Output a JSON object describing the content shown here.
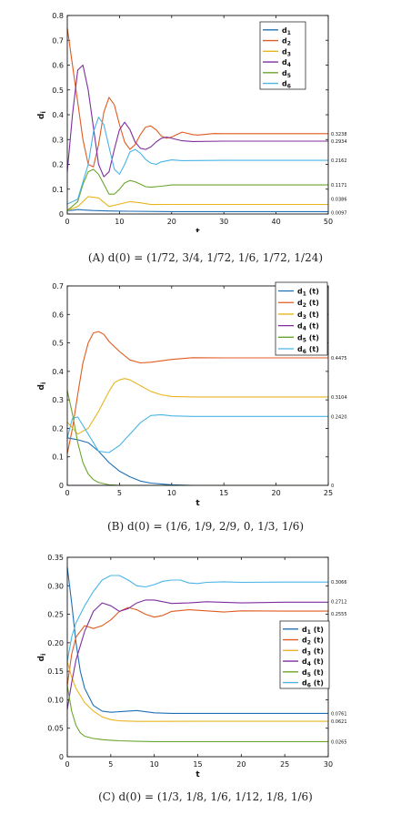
{
  "chart_data": [
    {
      "type": "line",
      "xlabel": "t",
      "ylabel": "d_i",
      "xlim": [
        0,
        50
      ],
      "ylim": [
        0,
        0.8
      ],
      "xticks": [
        0,
        10,
        20,
        30,
        40,
        50
      ],
      "yticks": [
        0,
        0.1,
        0.2,
        0.3,
        0.4,
        0.5,
        0.6,
        0.7,
        0.8
      ],
      "legend": "top-right",
      "caption": "(A) d(0) = (1/72, 3/4, 1/72, 1/6, 1/72, 1/24)",
      "end_labels": [
        "0.3238",
        "0.2934",
        "0.2162",
        "0.1171",
        "0.0386",
        "0.0097"
      ],
      "series": [
        {
          "name": "d1",
          "color": "#1f6fb5",
          "x": [
            0,
            1,
            2,
            3,
            5,
            8,
            12,
            20,
            50
          ],
          "y": [
            0.014,
            0.015,
            0.018,
            0.016,
            0.014,
            0.012,
            0.011,
            0.0097,
            0.0097
          ]
        },
        {
          "name": "d2",
          "color": "#e05b1f",
          "x": [
            0,
            1,
            2,
            3,
            4,
            5,
            6,
            7,
            8,
            9,
            10,
            11,
            12,
            13,
            14,
            15,
            16,
            17,
            18,
            19,
            20,
            21,
            22,
            23,
            24,
            25,
            26,
            28,
            30,
            50
          ],
          "y": [
            0.75,
            0.6,
            0.45,
            0.3,
            0.2,
            0.19,
            0.28,
            0.41,
            0.47,
            0.44,
            0.36,
            0.29,
            0.26,
            0.28,
            0.32,
            0.35,
            0.355,
            0.34,
            0.315,
            0.305,
            0.31,
            0.32,
            0.33,
            0.325,
            0.32,
            0.318,
            0.32,
            0.324,
            0.3238,
            0.3238
          ]
        },
        {
          "name": "d3",
          "color": "#e8b51e",
          "x": [
            0,
            2,
            4,
            6,
            8,
            10,
            12,
            14,
            16,
            20,
            50
          ],
          "y": [
            0.014,
            0.03,
            0.07,
            0.065,
            0.03,
            0.04,
            0.05,
            0.045,
            0.038,
            0.0386,
            0.0386
          ]
        },
        {
          "name": "d4",
          "color": "#7d2f9e",
          "x": [
            0,
            1,
            2,
            3,
            4,
            5,
            6,
            7,
            8,
            9,
            10,
            11,
            12,
            13,
            14,
            15,
            16,
            17,
            18,
            19,
            20,
            22,
            24,
            30,
            50
          ],
          "y": [
            0.17,
            0.4,
            0.58,
            0.6,
            0.5,
            0.35,
            0.2,
            0.15,
            0.17,
            0.26,
            0.34,
            0.37,
            0.34,
            0.29,
            0.265,
            0.26,
            0.27,
            0.29,
            0.305,
            0.31,
            0.305,
            0.295,
            0.292,
            0.2934,
            0.2934
          ]
        },
        {
          "name": "d5",
          "color": "#6aa62d",
          "x": [
            0,
            2,
            3,
            4,
            5,
            6,
            7,
            8,
            9,
            10,
            11,
            12,
            13,
            14,
            15,
            16,
            18,
            20,
            25,
            50
          ],
          "y": [
            0.014,
            0.05,
            0.12,
            0.17,
            0.18,
            0.16,
            0.12,
            0.08,
            0.08,
            0.1,
            0.125,
            0.135,
            0.13,
            0.12,
            0.11,
            0.108,
            0.112,
            0.117,
            0.1171,
            0.1171
          ]
        },
        {
          "name": "d6",
          "color": "#4ab4e6",
          "x": [
            0,
            2,
            4,
            5,
            6,
            7,
            8,
            9,
            10,
            11,
            12,
            13,
            14,
            15,
            16,
            17,
            18,
            20,
            22,
            30,
            50
          ],
          "y": [
            0.04,
            0.06,
            0.2,
            0.33,
            0.39,
            0.36,
            0.27,
            0.18,
            0.16,
            0.2,
            0.25,
            0.26,
            0.245,
            0.22,
            0.205,
            0.2,
            0.21,
            0.218,
            0.215,
            0.2162,
            0.2162
          ]
        }
      ]
    },
    {
      "type": "line",
      "xlabel": "t",
      "ylabel": "d_i",
      "xlim": [
        0,
        25
      ],
      "ylim": [
        0,
        0.7
      ],
      "xticks": [
        0,
        5,
        10,
        15,
        20,
        25
      ],
      "yticks": [
        0,
        0.1,
        0.2,
        0.3,
        0.4,
        0.5,
        0.6,
        0.7
      ],
      "legend": "top-right",
      "caption": "(B) d(0) = (1/6, 1/9, 2/9, 0, 1/3, 1/6)",
      "end_labels": [
        "0.4475",
        "0.3104",
        "0.2420",
        "0"
      ],
      "series": [
        {
          "name": "d1(t)",
          "color": "#1f6fb5",
          "x": [
            0,
            1,
            2,
            3,
            4,
            5,
            6,
            7,
            8,
            10,
            12,
            25
          ],
          "y": [
            0.167,
            0.16,
            0.15,
            0.12,
            0.08,
            0.05,
            0.03,
            0.015,
            0.008,
            0.002,
            0,
            0
          ]
        },
        {
          "name": "d2(t)",
          "color": "#e05b1f",
          "x": [
            0,
            0.5,
            1,
            1.5,
            2,
            2.5,
            3,
            3.5,
            4,
            5,
            6,
            7,
            8,
            10,
            12,
            15,
            25
          ],
          "y": [
            0.111,
            0.2,
            0.32,
            0.43,
            0.5,
            0.535,
            0.54,
            0.53,
            0.505,
            0.47,
            0.44,
            0.43,
            0.432,
            0.442,
            0.448,
            0.4475,
            0.4475
          ]
        },
        {
          "name": "d3(t)",
          "color": "#e8b51e",
          "x": [
            0,
            1,
            2,
            3,
            4,
            4.5,
            5,
            5.5,
            6,
            7,
            8,
            9,
            10,
            12,
            25
          ],
          "y": [
            0.222,
            0.18,
            0.2,
            0.26,
            0.33,
            0.36,
            0.37,
            0.375,
            0.37,
            0.35,
            0.33,
            0.318,
            0.312,
            0.3104,
            0.3104
          ]
        },
        {
          "name": "d4(t)",
          "color": "#7d2f9e",
          "x": [
            0,
            2,
            4,
            8,
            25
          ],
          "y": [
            0,
            0,
            0,
            0,
            0
          ]
        },
        {
          "name": "d5(t)",
          "color": "#6aa62d",
          "x": [
            0,
            0.5,
            1,
            1.5,
            2,
            2.5,
            3,
            4,
            5,
            25
          ],
          "y": [
            0.333,
            0.25,
            0.15,
            0.08,
            0.04,
            0.02,
            0.01,
            0.002,
            0,
            0
          ]
        },
        {
          "name": "d6(t)",
          "color": "#4ab4e6",
          "x": [
            0,
            0.5,
            1,
            2,
            3,
            4,
            5,
            6,
            7,
            8,
            9,
            10,
            12,
            25
          ],
          "y": [
            0.167,
            0.235,
            0.24,
            0.18,
            0.12,
            0.115,
            0.14,
            0.18,
            0.22,
            0.245,
            0.248,
            0.244,
            0.242,
            0.242
          ]
        }
      ]
    },
    {
      "type": "line",
      "xlabel": "t",
      "ylabel": "d_i",
      "xlim": [
        0,
        30
      ],
      "ylim": [
        0,
        0.35
      ],
      "xticks": [
        0,
        5,
        10,
        15,
        20,
        25,
        30
      ],
      "yticks": [
        0,
        0.05,
        0.1,
        0.15,
        0.2,
        0.25,
        0.3,
        0.35
      ],
      "legend": "right",
      "caption": "(C) d(0) = (1/3, 1/8, 1/6, 1/12, 1/8, 1/6)",
      "end_labels": [
        "0.3066",
        "0.2712",
        "0.2555",
        "0.0761",
        "0.0621",
        "0.0265"
      ],
      "series": [
        {
          "name": "d1(t)",
          "color": "#1f6fb5",
          "x": [
            0,
            0.5,
            1,
            1.5,
            2,
            3,
            4,
            5,
            6,
            8,
            10,
            12,
            15,
            30
          ],
          "y": [
            0.333,
            0.27,
            0.2,
            0.15,
            0.12,
            0.09,
            0.08,
            0.078,
            0.079,
            0.081,
            0.077,
            0.076,
            0.0761,
            0.0761
          ]
        },
        {
          "name": "d2(t)",
          "color": "#e05b1f",
          "x": [
            0,
            0.5,
            1,
            2,
            3,
            4,
            5,
            6,
            7,
            8,
            9,
            10,
            11,
            12,
            14,
            16,
            18,
            20,
            25,
            30
          ],
          "y": [
            0.125,
            0.18,
            0.21,
            0.23,
            0.225,
            0.23,
            0.24,
            0.255,
            0.262,
            0.258,
            0.25,
            0.245,
            0.248,
            0.255,
            0.258,
            0.256,
            0.254,
            0.256,
            0.2555,
            0.2555
          ]
        },
        {
          "name": "d3(t)",
          "color": "#e8b51e",
          "x": [
            0,
            0.5,
            1,
            2,
            3,
            4,
            5,
            6,
            8,
            10,
            15,
            30
          ],
          "y": [
            0.167,
            0.14,
            0.12,
            0.095,
            0.08,
            0.07,
            0.065,
            0.063,
            0.062,
            0.062,
            0.0621,
            0.0621
          ]
        },
        {
          "name": "d4(t)",
          "color": "#7d2f9e",
          "x": [
            0,
            0.5,
            1,
            2,
            3,
            4,
            5,
            6,
            7,
            8,
            9,
            10,
            11,
            12,
            14,
            16,
            18,
            20,
            25,
            30
          ],
          "y": [
            0.083,
            0.13,
            0.17,
            0.22,
            0.255,
            0.27,
            0.265,
            0.255,
            0.26,
            0.27,
            0.275,
            0.275,
            0.272,
            0.269,
            0.27,
            0.272,
            0.271,
            0.27,
            0.2712,
            0.2712
          ]
        },
        {
          "name": "d5(t)",
          "color": "#6aa62d",
          "x": [
            0,
            0.5,
            1,
            1.5,
            2,
            3,
            4,
            5,
            6,
            8,
            10,
            15,
            30
          ],
          "y": [
            0.125,
            0.08,
            0.055,
            0.042,
            0.036,
            0.032,
            0.03,
            0.029,
            0.028,
            0.027,
            0.0265,
            0.0265,
            0.0265
          ]
        },
        {
          "name": "d6(t)",
          "color": "#4ab4e6",
          "x": [
            0,
            0.5,
            1,
            2,
            3,
            4,
            5,
            6,
            7,
            8,
            9,
            10,
            11,
            12,
            13,
            14,
            15,
            16,
            18,
            20,
            25,
            30
          ],
          "y": [
            0.167,
            0.21,
            0.235,
            0.265,
            0.29,
            0.31,
            0.318,
            0.318,
            0.31,
            0.3,
            0.298,
            0.302,
            0.308,
            0.31,
            0.31,
            0.305,
            0.304,
            0.306,
            0.307,
            0.306,
            0.3066,
            0.3066
          ]
        }
      ]
    }
  ]
}
